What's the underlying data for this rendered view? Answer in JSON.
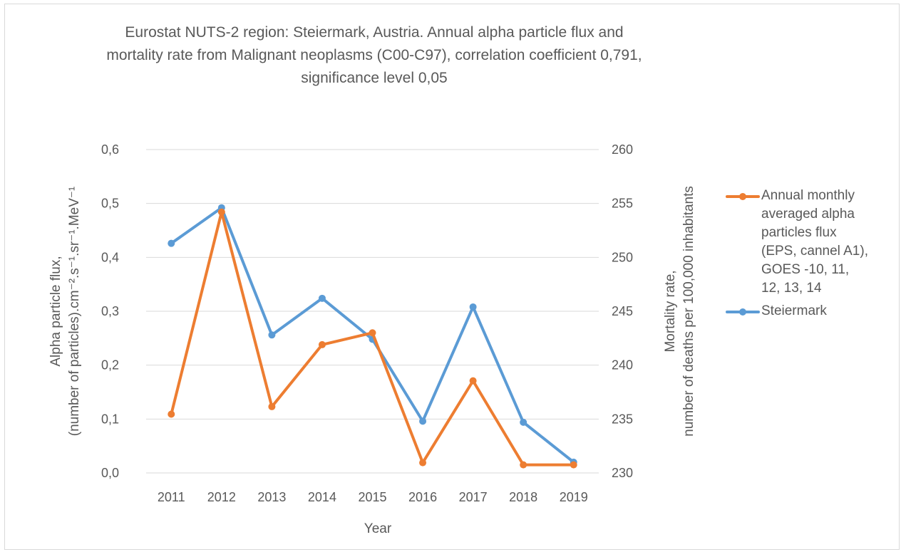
{
  "chart_data": {
    "type": "line",
    "title": [
      "Eurostat NUTS-2 region: Steiermark, Austria. Annual alpha particle flux and",
      "mortality rate from Malignant neoplasms (C00-C97), correlation coefficient 0,791,",
      "significance level 0,05"
    ],
    "xlabel": "Year",
    "ylabel_left": [
      "Alpha particle flux,",
      "(number of particles).cm⁻².s⁻¹.sr⁻¹.MeV⁻¹"
    ],
    "ylabel_right": [
      "Mortality rate,",
      "number of deaths per 100,000 inhabitants"
    ],
    "categories": [
      "2011",
      "2012",
      "2013",
      "2014",
      "2015",
      "2016",
      "2017",
      "2018",
      "2019"
    ],
    "y_left": {
      "range": [
        0,
        0.6
      ],
      "ticks": [
        "0,0",
        "0,1",
        "0,2",
        "0,3",
        "0,4",
        "0,5",
        "0,6"
      ]
    },
    "y_right": {
      "range": [
        230,
        260
      ],
      "ticks": [
        "230",
        "235",
        "240",
        "245",
        "250",
        "255",
        "260"
      ]
    },
    "grid": true,
    "legend_position": "right",
    "series": [
      {
        "name": "Annual monthly averaged alpha particles flux (EPS, cannel A1), GOES -10, 11, 12, 13, 14",
        "legend_lines": [
          "Annual monthly",
          "averaged alpha",
          "particles flux",
          "(EPS, cannel A1),",
          "GOES -10, 11,",
          "12, 13, 14"
        ],
        "axis": "left",
        "color": "#ed7d31",
        "values": [
          0.109,
          0.484,
          0.123,
          0.238,
          0.26,
          0.019,
          0.171,
          0.015,
          0.015
        ]
      },
      {
        "name": "Steiermark",
        "legend_lines": [
          "Steiermark"
        ],
        "axis": "right",
        "color": "#5b9bd5",
        "values": [
          251.3,
          254.6,
          242.8,
          246.2,
          242.4,
          234.8,
          245.4,
          234.7,
          231.0
        ]
      }
    ]
  }
}
